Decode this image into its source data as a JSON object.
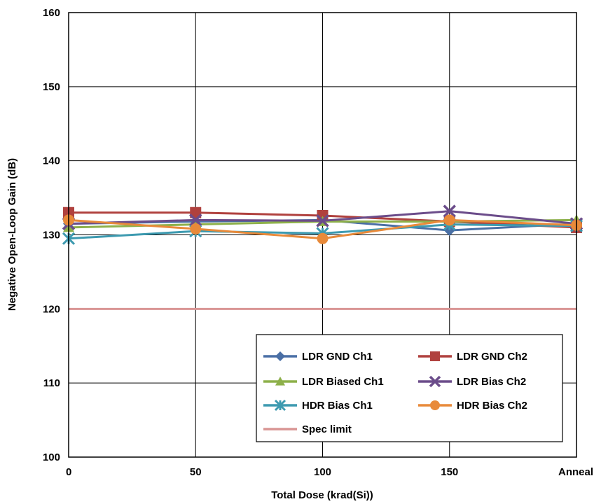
{
  "chart_data": {
    "type": "line",
    "xlabel": "Total Dose (krad(Si))",
    "ylabel": "Negative Open-Loop Gain (dB)",
    "x_categories": [
      "0",
      "50",
      "100",
      "150",
      "Anneal"
    ],
    "ylim": [
      100,
      160
    ],
    "y_ticks": [
      "100",
      "110",
      "120",
      "130",
      "140",
      "150",
      "160"
    ],
    "grid": true,
    "legend_position": "bottom-right",
    "series": [
      {
        "name": "LDR GND Ch1",
        "color": "#4a6fa5",
        "marker": "diamond",
        "values": [
          131.5,
          131.8,
          132.0,
          130.6,
          131.5
        ]
      },
      {
        "name": "LDR GND Ch2",
        "color": "#b0413e",
        "marker": "square",
        "values": [
          133.0,
          133.0,
          132.6,
          131.8,
          131.0
        ]
      },
      {
        "name": "LDR Biased Ch1",
        "color": "#8db04a",
        "marker": "triangle",
        "values": [
          131.0,
          131.4,
          131.8,
          131.8,
          132.0
        ]
      },
      {
        "name": "LDR Bias Ch2",
        "color": "#6b4c8a",
        "marker": "x",
        "values": [
          131.5,
          132.0,
          131.9,
          133.2,
          131.5
        ]
      },
      {
        "name": "HDR Bias Ch1",
        "color": "#3d9ab0",
        "marker": "star",
        "values": [
          129.5,
          130.5,
          130.2,
          131.4,
          131.2
        ]
      },
      {
        "name": "HDR Bias Ch2",
        "color": "#e88a3a",
        "marker": "circle",
        "values": [
          132.0,
          130.8,
          129.5,
          132.0,
          131.3
        ]
      },
      {
        "name": "Spec limit",
        "color": "#d99594",
        "marker": "none",
        "values": [
          120,
          120,
          120,
          120,
          120
        ]
      }
    ]
  }
}
